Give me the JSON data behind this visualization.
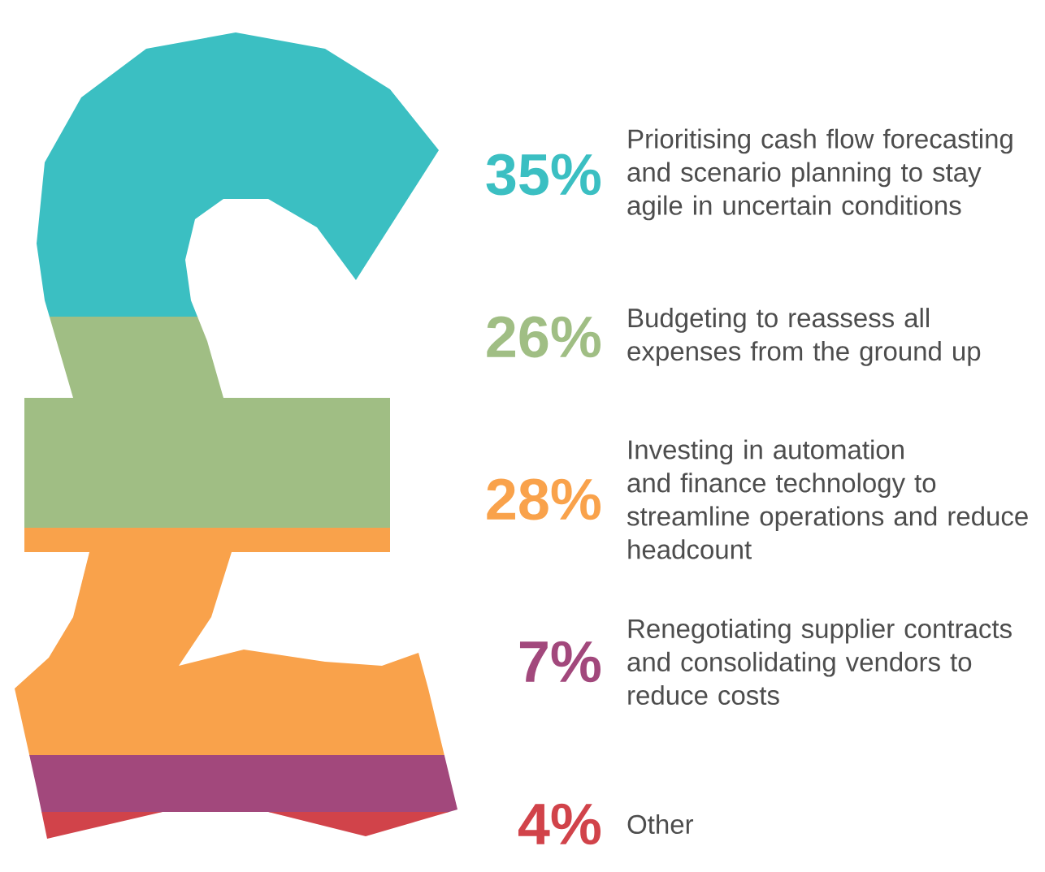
{
  "chart_data": {
    "type": "other",
    "categories": [
      "Prioritising cash flow forecasting and scenario planning to stay agile in uncertain conditions",
      "Budgeting to reassess all expenses from the ground up",
      "Investing in automation and finance technology to streamline operations and reduce headcount",
      "Renegotiating supplier contracts and consolidating vendors to reduce costs",
      "Other"
    ],
    "values": [
      35,
      26,
      28,
      7,
      4
    ],
    "value_labels": [
      "35%",
      "26%",
      "28%",
      "7%",
      "4%"
    ],
    "colors": [
      "#3bbfc2",
      "#a0be84",
      "#f9a24b",
      "#a2487c",
      "#d1434a"
    ]
  }
}
